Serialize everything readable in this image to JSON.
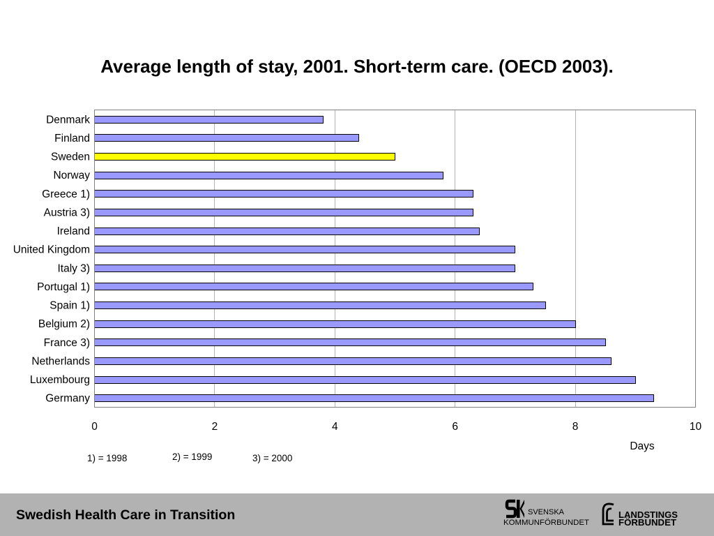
{
  "slide": {
    "colors": {
      "background": "#ffffff",
      "footer_band": "#b2b2b2"
    },
    "footer": {
      "title": "Swedish Health Care in Transition",
      "logo_kommunforbundet": {
        "line1": "SVENSKA",
        "line2": "KOMMUNFÖRBUNDET"
      },
      "logo_landstingsforbundet": {
        "line1": "LANDSTINGS",
        "line2": "FÖRBUNDET"
      }
    }
  },
  "chart_data": {
    "type": "bar",
    "orientation": "horizontal",
    "title": "Average length of stay, 2001. Short-term care. (OECD 2003).",
    "xlabel": "Days",
    "ylabel": "",
    "categories": [
      "Denmark",
      "Finland",
      "Sweden",
      "Norway",
      "Greece 1)",
      "Austria 3)",
      "Ireland",
      "United Kingdom",
      "Italy 3)",
      "Portugal 1)",
      "Spain 1)",
      "Belgium 2)",
      "France 3)",
      "Netherlands",
      "Luxembourg",
      "Germany"
    ],
    "values": [
      3.8,
      4.4,
      5.0,
      5.8,
      6.3,
      6.3,
      6.4,
      7.0,
      7.0,
      7.3,
      7.5,
      8.0,
      8.5,
      8.6,
      9.0,
      9.3
    ],
    "bar_colors": [
      "#9999ff",
      "#9999ff",
      "#ffff00",
      "#9999ff",
      "#9999ff",
      "#9999ff",
      "#9999ff",
      "#9999ff",
      "#9999ff",
      "#9999ff",
      "#9999ff",
      "#9999ff",
      "#9999ff",
      "#9999ff",
      "#9999ff",
      "#9999ff"
    ],
    "xlim": [
      0,
      10
    ],
    "xticks": [
      0,
      2,
      4,
      6,
      8,
      10
    ],
    "grid": {
      "vertical": true,
      "horizontal": false
    },
    "annotations": [
      "1) = 1998",
      "2) = 1999",
      "3) = 2000"
    ],
    "colors": {
      "bar": "#9999ff",
      "highlight": "#ffff00",
      "bar_border": "#000000",
      "gridline": "#b4b4b4",
      "plot_border": "#808080"
    }
  }
}
